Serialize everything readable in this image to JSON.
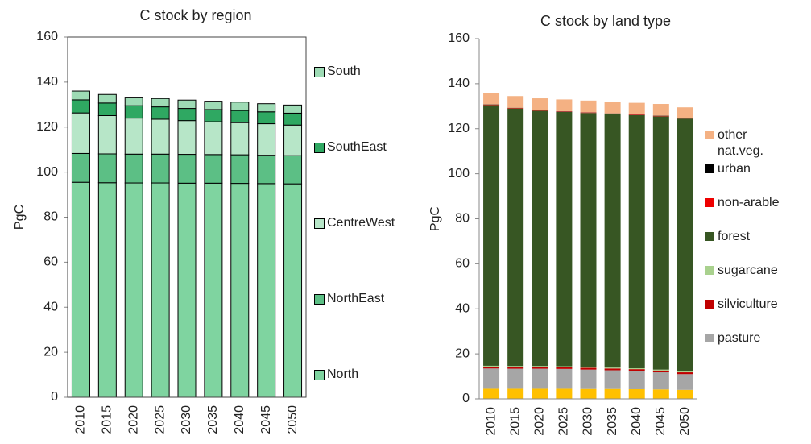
{
  "chart_data": [
    {
      "type": "bar",
      "stacked": true,
      "title": "C stock by region",
      "y_label": "PgC",
      "categories": [
        "2010",
        "2015",
        "2020",
        "2025",
        "2030",
        "2035",
        "2040",
        "2045",
        "2050"
      ],
      "ylim": [
        0,
        160
      ],
      "yticks": [
        0,
        20,
        40,
        60,
        80,
        100,
        120,
        140,
        160
      ],
      "frame": true,
      "bar_outline": "#000000",
      "series": [
        {
          "name": "North",
          "color": "#7fd4a0",
          "values": [
            95.5,
            95.3,
            95.2,
            95.2,
            95.1,
            95.1,
            95.0,
            94.9,
            94.8
          ]
        },
        {
          "name": "NorthEast",
          "color": "#5cbf85",
          "values": [
            12.8,
            12.8,
            12.8,
            12.8,
            12.8,
            12.7,
            12.7,
            12.6,
            12.5
          ]
        },
        {
          "name": "CentreWest",
          "color": "#b7e6c8",
          "values": [
            18.0,
            17.0,
            16.0,
            15.5,
            15.0,
            14.6,
            14.3,
            14.0,
            13.6
          ]
        },
        {
          "name": "SouthEast",
          "color": "#2fa862",
          "values": [
            5.8,
            5.6,
            5.5,
            5.5,
            5.4,
            5.4,
            5.4,
            5.3,
            5.3
          ]
        },
        {
          "name": "South",
          "color": "#9edbb5",
          "values": [
            3.9,
            3.8,
            3.8,
            3.7,
            3.7,
            3.7,
            3.7,
            3.6,
            3.6
          ]
        }
      ]
    },
    {
      "type": "bar",
      "stacked": true,
      "title": "C stock by land type",
      "y_label": "PgC",
      "categories": [
        "2010",
        "2015",
        "2020",
        "2025",
        "2030",
        "2035",
        "2040",
        "2045",
        "2050"
      ],
      "ylim": [
        0,
        160
      ],
      "yticks": [
        0,
        20,
        40,
        60,
        80,
        100,
        120,
        140,
        160
      ],
      "frame": false,
      "series": [
        {
          "name": null,
          "color": "#ffc000",
          "values": [
            4.5,
            4.5,
            4.5,
            4.5,
            4.4,
            4.4,
            4.3,
            4.2,
            4.0
          ]
        },
        {
          "name": "pasture",
          "color": "#a6a6a6",
          "values": [
            9.0,
            8.9,
            8.9,
            8.8,
            8.6,
            8.3,
            8.1,
            7.6,
            7.0
          ]
        },
        {
          "name": "silviculture",
          "color": "#c00000",
          "values": [
            0.8,
            0.8,
            0.8,
            0.8,
            0.8,
            0.8,
            0.8,
            0.8,
            0.8
          ]
        },
        {
          "name": "sugarcane",
          "color": "#a9d18e",
          "values": [
            0.4,
            0.4,
            0.4,
            0.4,
            0.4,
            0.4,
            0.4,
            0.4,
            0.4
          ]
        },
        {
          "name": "forest",
          "color": "#375623",
          "values": [
            115.8,
            114.4,
            113.4,
            113.0,
            112.8,
            112.6,
            112.4,
            112.5,
            112.3
          ]
        },
        {
          "name": "non-arable",
          "color": "#ee0000",
          "values": [
            0.2,
            0.2,
            0.2,
            0.2,
            0.2,
            0.2,
            0.2,
            0.2,
            0.2
          ]
        },
        {
          "name": "urban",
          "color": "#000000",
          "values": [
            0.1,
            0.1,
            0.1,
            0.1,
            0.1,
            0.1,
            0.1,
            0.1,
            0.1
          ]
        },
        {
          "name": "other nat.veg.",
          "color": "#f4b183",
          "values": [
            5.2,
            5.2,
            5.2,
            5.2,
            5.2,
            5.2,
            5.2,
            5.2,
            4.7
          ]
        }
      ]
    }
  ]
}
